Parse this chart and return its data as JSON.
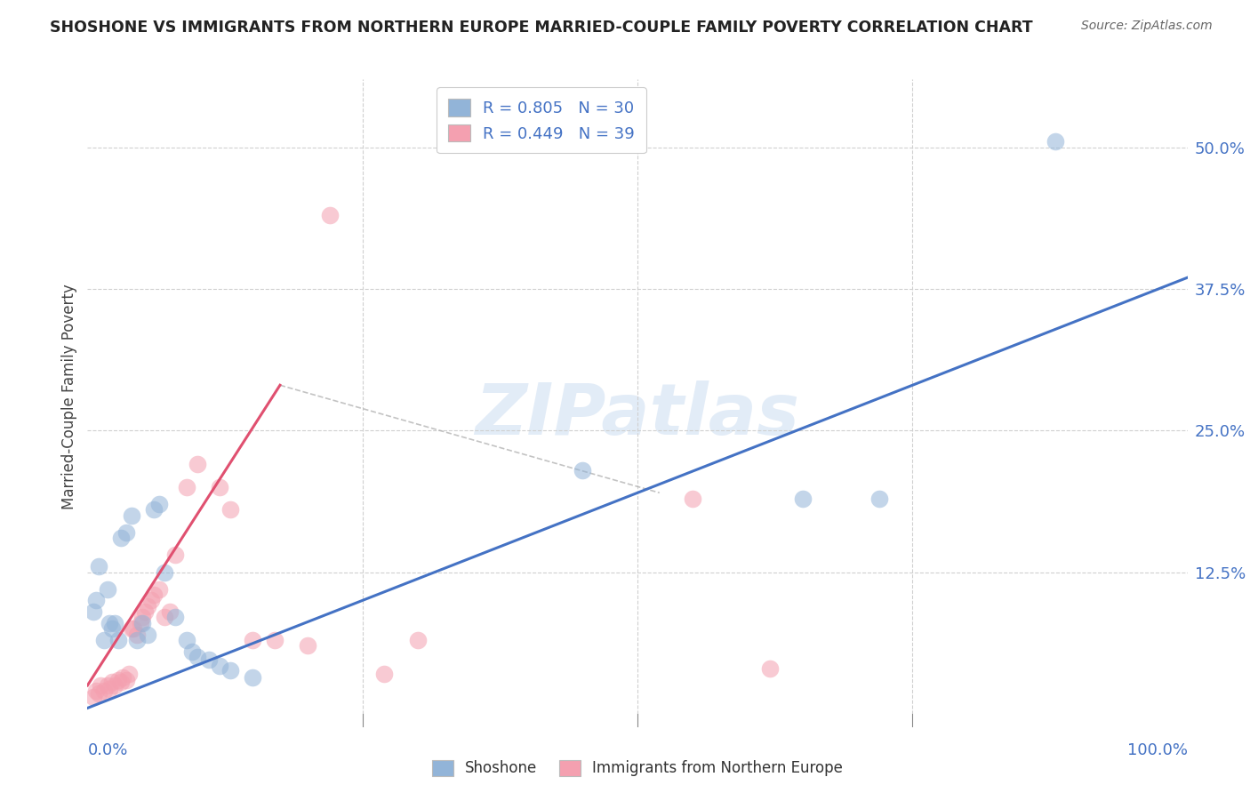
{
  "title": "SHOSHONE VS IMMIGRANTS FROM NORTHERN EUROPE MARRIED-COUPLE FAMILY POVERTY CORRELATION CHART",
  "source": "Source: ZipAtlas.com",
  "ylabel": "Married-Couple Family Poverty",
  "ytick_labels": [
    "50.0%",
    "37.5%",
    "25.0%",
    "12.5%"
  ],
  "ytick_values": [
    0.5,
    0.375,
    0.25,
    0.125
  ],
  "xlim": [
    0.0,
    1.0
  ],
  "ylim": [
    0.0,
    0.56
  ],
  "watermark": "ZIPatlas",
  "legend_r1": "R = 0.805",
  "legend_n1": "N = 30",
  "legend_r2": "R = 0.449",
  "legend_n2": "N = 39",
  "blue_color": "#92B4D8",
  "pink_color": "#F4A0B0",
  "blue_line_color": "#4472C4",
  "pink_line_color": "#E05070",
  "blue_scatter": [
    [
      0.005,
      0.09
    ],
    [
      0.008,
      0.1
    ],
    [
      0.01,
      0.13
    ],
    [
      0.015,
      0.065
    ],
    [
      0.018,
      0.11
    ],
    [
      0.02,
      0.08
    ],
    [
      0.022,
      0.075
    ],
    [
      0.025,
      0.08
    ],
    [
      0.028,
      0.065
    ],
    [
      0.03,
      0.155
    ],
    [
      0.035,
      0.16
    ],
    [
      0.04,
      0.175
    ],
    [
      0.045,
      0.065
    ],
    [
      0.05,
      0.08
    ],
    [
      0.055,
      0.07
    ],
    [
      0.06,
      0.18
    ],
    [
      0.065,
      0.185
    ],
    [
      0.07,
      0.125
    ],
    [
      0.08,
      0.085
    ],
    [
      0.09,
      0.065
    ],
    [
      0.095,
      0.055
    ],
    [
      0.1,
      0.05
    ],
    [
      0.11,
      0.048
    ],
    [
      0.12,
      0.042
    ],
    [
      0.13,
      0.038
    ],
    [
      0.15,
      0.032
    ],
    [
      0.45,
      0.215
    ],
    [
      0.65,
      0.19
    ],
    [
      0.72,
      0.19
    ],
    [
      0.88,
      0.505
    ]
  ],
  "pink_scatter": [
    [
      0.005,
      0.015
    ],
    [
      0.008,
      0.02
    ],
    [
      0.01,
      0.018
    ],
    [
      0.012,
      0.025
    ],
    [
      0.015,
      0.02
    ],
    [
      0.018,
      0.025
    ],
    [
      0.02,
      0.022
    ],
    [
      0.022,
      0.028
    ],
    [
      0.025,
      0.025
    ],
    [
      0.028,
      0.03
    ],
    [
      0.03,
      0.028
    ],
    [
      0.032,
      0.032
    ],
    [
      0.035,
      0.03
    ],
    [
      0.038,
      0.035
    ],
    [
      0.04,
      0.075
    ],
    [
      0.042,
      0.075
    ],
    [
      0.045,
      0.07
    ],
    [
      0.048,
      0.08
    ],
    [
      0.05,
      0.085
    ],
    [
      0.052,
      0.09
    ],
    [
      0.055,
      0.095
    ],
    [
      0.058,
      0.1
    ],
    [
      0.06,
      0.105
    ],
    [
      0.065,
      0.11
    ],
    [
      0.07,
      0.085
    ],
    [
      0.075,
      0.09
    ],
    [
      0.08,
      0.14
    ],
    [
      0.09,
      0.2
    ],
    [
      0.1,
      0.22
    ],
    [
      0.12,
      0.2
    ],
    [
      0.13,
      0.18
    ],
    [
      0.15,
      0.065
    ],
    [
      0.17,
      0.065
    ],
    [
      0.2,
      0.06
    ],
    [
      0.22,
      0.44
    ],
    [
      0.27,
      0.035
    ],
    [
      0.3,
      0.065
    ],
    [
      0.55,
      0.19
    ],
    [
      0.62,
      0.04
    ]
  ],
  "blue_line_pts": [
    [
      0.0,
      0.005
    ],
    [
      1.0,
      0.385
    ]
  ],
  "pink_line_pts": [
    [
      0.0,
      0.025
    ],
    [
      0.175,
      0.29
    ]
  ],
  "dashed_line_pts": [
    [
      0.175,
      0.29
    ],
    [
      0.52,
      0.195
    ]
  ]
}
